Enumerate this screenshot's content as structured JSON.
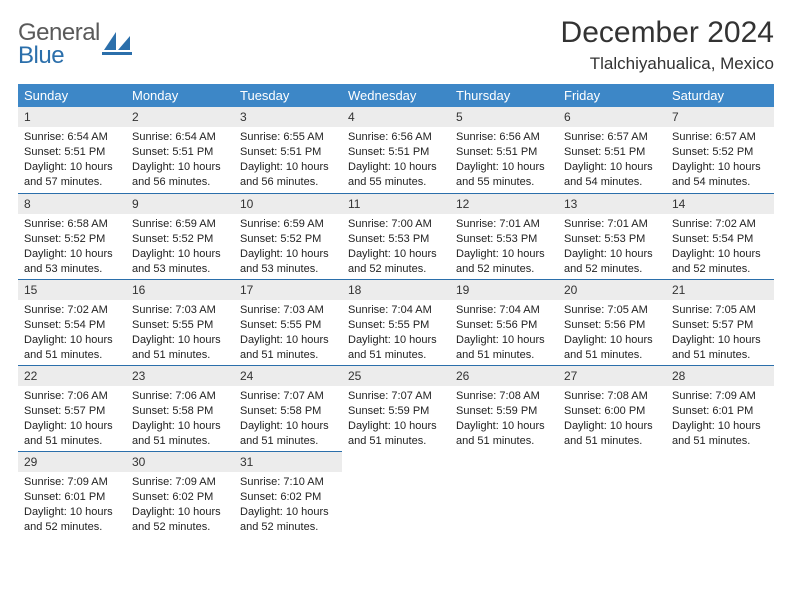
{
  "logo": {
    "general": "General",
    "blue": "Blue"
  },
  "header": {
    "month": "December 2024",
    "location": "Tlalchiyahualica, Mexico"
  },
  "weekdays": [
    "Sunday",
    "Monday",
    "Tuesday",
    "Wednesday",
    "Thursday",
    "Friday",
    "Saturday"
  ],
  "colors": {
    "header_bg": "#3d87c7",
    "daynum_bg": "#ececec",
    "rule": "#2b6fab"
  },
  "weeks": [
    [
      {
        "n": "1",
        "sr": "Sunrise: 6:54 AM",
        "ss": "Sunset: 5:51 PM",
        "d1": "Daylight: 10 hours",
        "d2": "and 57 minutes."
      },
      {
        "n": "2",
        "sr": "Sunrise: 6:54 AM",
        "ss": "Sunset: 5:51 PM",
        "d1": "Daylight: 10 hours",
        "d2": "and 56 minutes."
      },
      {
        "n": "3",
        "sr": "Sunrise: 6:55 AM",
        "ss": "Sunset: 5:51 PM",
        "d1": "Daylight: 10 hours",
        "d2": "and 56 minutes."
      },
      {
        "n": "4",
        "sr": "Sunrise: 6:56 AM",
        "ss": "Sunset: 5:51 PM",
        "d1": "Daylight: 10 hours",
        "d2": "and 55 minutes."
      },
      {
        "n": "5",
        "sr": "Sunrise: 6:56 AM",
        "ss": "Sunset: 5:51 PM",
        "d1": "Daylight: 10 hours",
        "d2": "and 55 minutes."
      },
      {
        "n": "6",
        "sr": "Sunrise: 6:57 AM",
        "ss": "Sunset: 5:51 PM",
        "d1": "Daylight: 10 hours",
        "d2": "and 54 minutes."
      },
      {
        "n": "7",
        "sr": "Sunrise: 6:57 AM",
        "ss": "Sunset: 5:52 PM",
        "d1": "Daylight: 10 hours",
        "d2": "and 54 minutes."
      }
    ],
    [
      {
        "n": "8",
        "sr": "Sunrise: 6:58 AM",
        "ss": "Sunset: 5:52 PM",
        "d1": "Daylight: 10 hours",
        "d2": "and 53 minutes."
      },
      {
        "n": "9",
        "sr": "Sunrise: 6:59 AM",
        "ss": "Sunset: 5:52 PM",
        "d1": "Daylight: 10 hours",
        "d2": "and 53 minutes."
      },
      {
        "n": "10",
        "sr": "Sunrise: 6:59 AM",
        "ss": "Sunset: 5:52 PM",
        "d1": "Daylight: 10 hours",
        "d2": "and 53 minutes."
      },
      {
        "n": "11",
        "sr": "Sunrise: 7:00 AM",
        "ss": "Sunset: 5:53 PM",
        "d1": "Daylight: 10 hours",
        "d2": "and 52 minutes."
      },
      {
        "n": "12",
        "sr": "Sunrise: 7:01 AM",
        "ss": "Sunset: 5:53 PM",
        "d1": "Daylight: 10 hours",
        "d2": "and 52 minutes."
      },
      {
        "n": "13",
        "sr": "Sunrise: 7:01 AM",
        "ss": "Sunset: 5:53 PM",
        "d1": "Daylight: 10 hours",
        "d2": "and 52 minutes."
      },
      {
        "n": "14",
        "sr": "Sunrise: 7:02 AM",
        "ss": "Sunset: 5:54 PM",
        "d1": "Daylight: 10 hours",
        "d2": "and 52 minutes."
      }
    ],
    [
      {
        "n": "15",
        "sr": "Sunrise: 7:02 AM",
        "ss": "Sunset: 5:54 PM",
        "d1": "Daylight: 10 hours",
        "d2": "and 51 minutes."
      },
      {
        "n": "16",
        "sr": "Sunrise: 7:03 AM",
        "ss": "Sunset: 5:55 PM",
        "d1": "Daylight: 10 hours",
        "d2": "and 51 minutes."
      },
      {
        "n": "17",
        "sr": "Sunrise: 7:03 AM",
        "ss": "Sunset: 5:55 PM",
        "d1": "Daylight: 10 hours",
        "d2": "and 51 minutes."
      },
      {
        "n": "18",
        "sr": "Sunrise: 7:04 AM",
        "ss": "Sunset: 5:55 PM",
        "d1": "Daylight: 10 hours",
        "d2": "and 51 minutes."
      },
      {
        "n": "19",
        "sr": "Sunrise: 7:04 AM",
        "ss": "Sunset: 5:56 PM",
        "d1": "Daylight: 10 hours",
        "d2": "and 51 minutes."
      },
      {
        "n": "20",
        "sr": "Sunrise: 7:05 AM",
        "ss": "Sunset: 5:56 PM",
        "d1": "Daylight: 10 hours",
        "d2": "and 51 minutes."
      },
      {
        "n": "21",
        "sr": "Sunrise: 7:05 AM",
        "ss": "Sunset: 5:57 PM",
        "d1": "Daylight: 10 hours",
        "d2": "and 51 minutes."
      }
    ],
    [
      {
        "n": "22",
        "sr": "Sunrise: 7:06 AM",
        "ss": "Sunset: 5:57 PM",
        "d1": "Daylight: 10 hours",
        "d2": "and 51 minutes."
      },
      {
        "n": "23",
        "sr": "Sunrise: 7:06 AM",
        "ss": "Sunset: 5:58 PM",
        "d1": "Daylight: 10 hours",
        "d2": "and 51 minutes."
      },
      {
        "n": "24",
        "sr": "Sunrise: 7:07 AM",
        "ss": "Sunset: 5:58 PM",
        "d1": "Daylight: 10 hours",
        "d2": "and 51 minutes."
      },
      {
        "n": "25",
        "sr": "Sunrise: 7:07 AM",
        "ss": "Sunset: 5:59 PM",
        "d1": "Daylight: 10 hours",
        "d2": "and 51 minutes."
      },
      {
        "n": "26",
        "sr": "Sunrise: 7:08 AM",
        "ss": "Sunset: 5:59 PM",
        "d1": "Daylight: 10 hours",
        "d2": "and 51 minutes."
      },
      {
        "n": "27",
        "sr": "Sunrise: 7:08 AM",
        "ss": "Sunset: 6:00 PM",
        "d1": "Daylight: 10 hours",
        "d2": "and 51 minutes."
      },
      {
        "n": "28",
        "sr": "Sunrise: 7:09 AM",
        "ss": "Sunset: 6:01 PM",
        "d1": "Daylight: 10 hours",
        "d2": "and 51 minutes."
      }
    ],
    [
      {
        "n": "29",
        "sr": "Sunrise: 7:09 AM",
        "ss": "Sunset: 6:01 PM",
        "d1": "Daylight: 10 hours",
        "d2": "and 52 minutes."
      },
      {
        "n": "30",
        "sr": "Sunrise: 7:09 AM",
        "ss": "Sunset: 6:02 PM",
        "d1": "Daylight: 10 hours",
        "d2": "and 52 minutes."
      },
      {
        "n": "31",
        "sr": "Sunrise: 7:10 AM",
        "ss": "Sunset: 6:02 PM",
        "d1": "Daylight: 10 hours",
        "d2": "and 52 minutes."
      },
      null,
      null,
      null,
      null
    ]
  ]
}
